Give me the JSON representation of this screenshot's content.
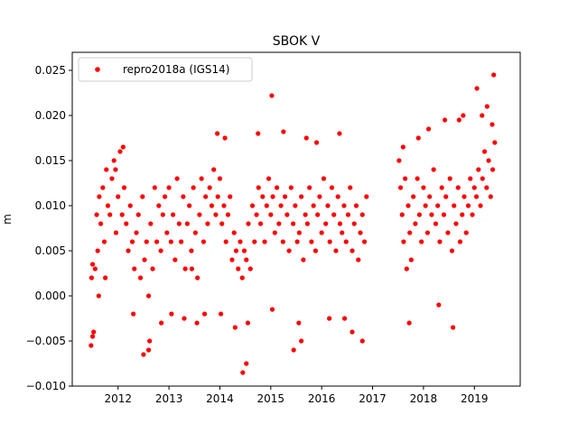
{
  "chart_data": {
    "type": "scatter",
    "title": "SBOK V",
    "xlabel": "",
    "ylabel": "m",
    "xlim": [
      2011.1,
      2019.9
    ],
    "ylim": [
      -0.01,
      0.027
    ],
    "x_ticks": [
      2012,
      2013,
      2014,
      2015,
      2016,
      2017,
      2018,
      2019
    ],
    "y_ticks": [
      -0.01,
      -0.005,
      0.0,
      0.005,
      0.01,
      0.015,
      0.02,
      0.025
    ],
    "y_tick_labels": [
      "−0.010",
      "−0.005",
      "0.000",
      "0.005",
      "0.010",
      "0.015",
      "0.020",
      "0.025"
    ],
    "legend": {
      "placement": "top-left"
    },
    "grid": false,
    "series": [
      {
        "name": "repro2018a (IGS14)",
        "color": "#ff0000",
        "marker": "circle",
        "x": [
          2011.47,
          2011.48,
          2011.5,
          2011.52,
          2011.55,
          2011.58,
          2011.6,
          2011.63,
          2011.66,
          2011.7,
          2011.73,
          2011.77,
          2011.8,
          2011.84,
          2011.88,
          2011.92,
          2011.96,
          2012.0,
          2012.04,
          2012.08,
          2012.12,
          2012.16,
          2012.2,
          2012.24,
          2012.28,
          2012.32,
          2012.36,
          2012.4,
          2012.44,
          2012.48,
          2012.52,
          2012.56,
          2012.6,
          2012.64,
          2012.68,
          2012.72,
          2012.76,
          2012.8,
          2012.84,
          2012.88,
          2012.92,
          2012.96,
          2013.0,
          2013.04,
          2013.08,
          2013.12,
          2013.16,
          2013.2,
          2013.24,
          2013.28,
          2013.32,
          2013.36,
          2013.4,
          2013.44,
          2013.48,
          2013.52,
          2013.56,
          2013.6,
          2013.64,
          2013.68,
          2013.72,
          2013.76,
          2013.8,
          2013.84,
          2013.88,
          2013.92,
          2013.96,
          2014.0,
          2014.04,
          2014.08,
          2014.12,
          2014.16,
          2014.2,
          2014.24,
          2014.28,
          2014.32,
          2014.36,
          2014.4,
          2014.44,
          2014.48,
          2014.52,
          2014.56,
          2014.6,
          2014.64,
          2014.68,
          2014.72,
          2014.76,
          2014.8,
          2014.84,
          2014.88,
          2014.92,
          2014.96,
          2015.0,
          2015.04,
          2015.08,
          2015.12,
          2015.16,
          2015.2,
          2015.24,
          2015.28,
          2015.32,
          2015.36,
          2015.4,
          2015.44,
          2015.48,
          2015.52,
          2015.56,
          2015.6,
          2015.64,
          2015.68,
          2015.72,
          2015.76,
          2015.8,
          2015.84,
          2015.88,
          2015.92,
          2015.96,
          2016.0,
          2016.04,
          2016.08,
          2016.12,
          2016.16,
          2016.2,
          2016.24,
          2016.28,
          2016.32,
          2016.36,
          2016.4,
          2016.44,
          2016.48,
          2016.52,
          2016.56,
          2016.6,
          2016.64,
          2016.68,
          2016.72,
          2016.76,
          2016.8,
          2016.84,
          2016.88,
          2017.52,
          2017.55,
          2017.58,
          2017.61,
          2017.64,
          2017.67,
          2017.7,
          2017.73,
          2017.76,
          2017.8,
          2017.84,
          2017.88,
          2017.92,
          2017.96,
          2018.0,
          2018.04,
          2018.08,
          2018.12,
          2018.16,
          2018.2,
          2018.24,
          2018.28,
          2018.32,
          2018.36,
          2018.4,
          2018.44,
          2018.48,
          2018.52,
          2018.56,
          2018.6,
          2018.64,
          2018.68,
          2018.72,
          2018.76,
          2018.8,
          2018.84,
          2018.88,
          2018.92,
          2018.96,
          2019.0,
          2019.04,
          2019.08,
          2019.12,
          2019.16,
          2019.2,
          2019.24,
          2019.28,
          2019.32,
          2019.36,
          2019.4,
          2011.5,
          2011.62,
          2011.75,
          2011.95,
          2012.1,
          2012.3,
          2012.5,
          2012.62,
          2012.85,
          2013.05,
          2013.3,
          2013.55,
          2013.7,
          2013.95,
          2014.1,
          2014.3,
          2014.45,
          2014.52,
          2014.55,
          2014.75,
          2015.02,
          2015.25,
          2015.45,
          2015.6,
          2015.7,
          2015.9,
          2016.15,
          2016.35,
          2016.6,
          2016.8,
          2017.6,
          2017.72,
          2017.9,
          2018.1,
          2018.3,
          2018.42,
          2018.58,
          2018.7,
          2018.78,
          2019.05,
          2019.15,
          2019.25,
          2019.35,
          2019.38,
          2015.03,
          2014.02,
          2012.6,
          2013.45,
          2016.45,
          2015.55
        ],
        "y": [
          -0.0055,
          0.002,
          0.0035,
          -0.004,
          0.003,
          0.009,
          0.005,
          0.011,
          0.008,
          0.012,
          0.006,
          0.014,
          0.01,
          0.009,
          0.013,
          0.015,
          0.007,
          0.011,
          0.016,
          0.009,
          0.012,
          0.008,
          0.005,
          0.01,
          0.006,
          0.003,
          0.007,
          0.009,
          0.002,
          0.011,
          0.004,
          0.006,
          0.0,
          0.008,
          0.003,
          0.012,
          0.006,
          0.01,
          0.005,
          0.009,
          0.011,
          0.007,
          0.012,
          0.006,
          0.009,
          0.004,
          0.013,
          0.008,
          0.006,
          0.011,
          0.003,
          0.008,
          0.01,
          0.005,
          0.012,
          0.007,
          0.002,
          0.009,
          0.013,
          0.006,
          0.011,
          0.008,
          0.012,
          0.01,
          0.014,
          0.009,
          0.011,
          0.013,
          0.008,
          0.01,
          0.006,
          0.009,
          0.011,
          0.004,
          0.007,
          0.005,
          0.003,
          0.006,
          0.002,
          0.005,
          0.004,
          0.008,
          0.003,
          0.01,
          0.006,
          0.009,
          0.012,
          0.008,
          0.011,
          0.006,
          0.01,
          0.013,
          0.009,
          0.011,
          0.007,
          0.012,
          0.008,
          0.01,
          0.006,
          0.011,
          0.009,
          0.005,
          0.012,
          0.008,
          0.01,
          0.006,
          0.007,
          0.011,
          0.004,
          0.009,
          0.008,
          0.012,
          0.006,
          0.01,
          0.005,
          0.009,
          0.011,
          0.007,
          0.013,
          0.008,
          0.01,
          0.006,
          0.012,
          0.009,
          0.005,
          0.011,
          0.008,
          0.007,
          0.01,
          0.006,
          0.009,
          0.012,
          0.005,
          0.008,
          0.01,
          0.004,
          0.007,
          0.009,
          0.006,
          0.011,
          0.015,
          0.012,
          0.009,
          0.006,
          0.013,
          0.003,
          0.01,
          0.007,
          0.004,
          0.011,
          0.008,
          0.013,
          0.009,
          0.006,
          0.012,
          0.01,
          0.007,
          0.011,
          0.009,
          0.014,
          0.008,
          0.01,
          0.006,
          0.012,
          0.009,
          0.011,
          0.007,
          0.013,
          0.005,
          0.01,
          0.008,
          0.012,
          0.006,
          0.009,
          0.011,
          0.007,
          0.01,
          0.013,
          0.009,
          0.012,
          0.011,
          0.014,
          0.01,
          0.013,
          0.016,
          0.012,
          0.015,
          0.011,
          0.014,
          0.017,
          -0.0045,
          0.0,
          0.002,
          0.014,
          0.0165,
          -0.002,
          -0.0065,
          -0.005,
          -0.003,
          -0.002,
          -0.0025,
          -0.003,
          -0.002,
          0.018,
          0.0175,
          -0.0035,
          -0.0085,
          -0.0075,
          -0.003,
          0.018,
          0.0222,
          0.0182,
          -0.006,
          -0.005,
          0.0175,
          0.017,
          -0.0025,
          0.018,
          -0.004,
          -0.005,
          0.0165,
          -0.003,
          0.0175,
          0.0185,
          -0.001,
          0.0195,
          -0.0035,
          0.0195,
          0.02,
          0.023,
          0.02,
          0.021,
          0.019,
          0.0245,
          -0.0015,
          -0.002,
          -0.006,
          0.003,
          -0.0025,
          -0.003
        ]
      }
    ]
  }
}
